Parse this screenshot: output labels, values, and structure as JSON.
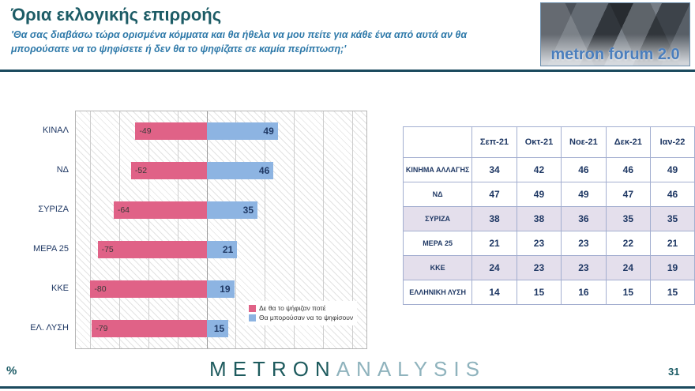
{
  "header": {
    "title": "Όρια εκλογικής επιρροής",
    "subtitle": "'Θα σας διαβάσω τώρα ορισμένα κόμματα και θα ήθελα να μου πείτε για κάθε ένα από αυτά αν θα μπορούσατε να το ψηφίσετε ή δεν θα το ψηφίζατε σε καμία περίπτωση;'",
    "logo_text": "metron forum 2.0"
  },
  "chart_data": {
    "type": "bar",
    "orientation": "horizontal_diverging",
    "categories": [
      "ΚΙΝΑΛ",
      "ΝΔ",
      "ΣΥΡΙΖΑ",
      "ΜΕΡΑ 25",
      "ΚΚΕ",
      "ΕΛ. ΛΥΣΗ"
    ],
    "series": [
      {
        "name": "Δε θα το ψήφιζαν ποτέ",
        "color": "#e06287",
        "values": [
          -49,
          -52,
          -64,
          -75,
          -80,
          -79
        ]
      },
      {
        "name": "Θα μπορούσαν να το ψηφίσουν",
        "color": "#8db4e2",
        "values": [
          49,
          46,
          35,
          21,
          19,
          15
        ]
      }
    ],
    "xlim": [
      -90,
      110
    ],
    "grid_step": 20,
    "grid": true,
    "legend_position": "bottom-right"
  },
  "table": {
    "columns": [
      "",
      "Σεπ-21",
      "Οκτ-21",
      "Νοε-21",
      "Δεκ-21",
      "Ιαν-22"
    ],
    "rows": [
      {
        "label": "ΚΙΝΗΜΑ ΑΛΛΑΓΗΣ",
        "values": [
          34,
          42,
          46,
          46,
          49
        ]
      },
      {
        "label": "ΝΔ",
        "values": [
          47,
          49,
          49,
          47,
          46
        ]
      },
      {
        "label": "ΣΥΡΙΖΑ",
        "values": [
          38,
          38,
          36,
          35,
          35
        ]
      },
      {
        "label": "ΜΕΡΑ 25",
        "values": [
          21,
          23,
          23,
          22,
          21
        ]
      },
      {
        "label": "ΚΚΕ",
        "values": [
          24,
          23,
          23,
          24,
          19
        ]
      },
      {
        "label": "ΕΛΛΗΝΙΚΗ ΛΥΣΗ",
        "values": [
          14,
          15,
          16,
          15,
          15
        ]
      }
    ]
  },
  "footer": {
    "unit_label": "%",
    "brand_primary": "METRON",
    "brand_secondary": "ANALYSIS",
    "page_number": "31"
  },
  "colors": {
    "never_vote": "#e06287",
    "could_vote": "#8db4e2",
    "title": "#1d5c66",
    "subtitle": "#2e79a9",
    "table_band": "#e4dfec"
  }
}
